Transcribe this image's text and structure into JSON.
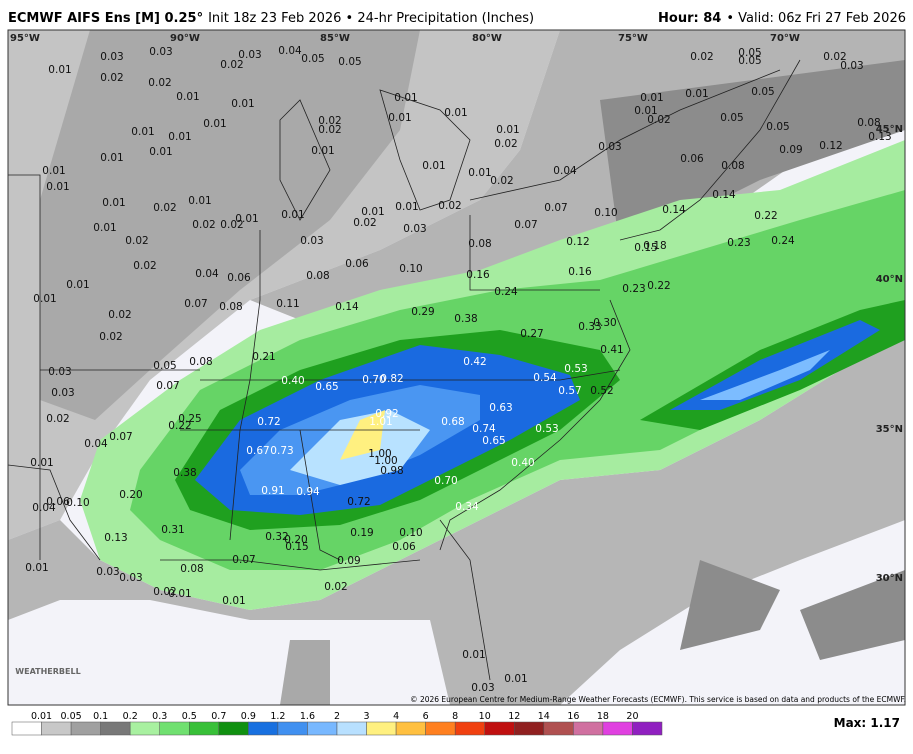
{
  "header": {
    "title_bold": "ECMWF AIFS Ens [M] 0.25°",
    "title_rest": "Init 18z 23 Feb 2026 • 24-hr Precipitation (Inches)",
    "hour": "Hour: 84",
    "valid": "• Valid: 06z Fri 27 Feb 2026"
  },
  "map": {
    "lon_labels": [
      "95°W",
      "90°W",
      "85°W",
      "80°W",
      "75°W",
      "70°W"
    ],
    "lat_labels": [
      "45°N",
      "40°N",
      "35°N",
      "30°N"
    ],
    "labels": [
      "0.03",
      "0.01",
      "0.02",
      "0.03",
      "0.03",
      "0.04",
      "0.05",
      "0.05",
      "0.02",
      "0.02",
      "0.01",
      "0.01",
      "0.01",
      "0.01",
      "0.01",
      "0.01",
      "0.02",
      "0.01",
      "0.01",
      "0.01",
      "0.01",
      "0.01",
      "0.02",
      "0.02",
      "0.01",
      "0.01",
      "0.01",
      "0.02",
      "0.04",
      "0.03",
      "0.01",
      "0.01",
      "0.01",
      "0.02",
      "0.01",
      "0.02",
      "0.02",
      "0.01",
      "0.01",
      "0.01",
      "0.02",
      "0.01",
      "0.02",
      "0.03",
      "0.07",
      "0.07",
      "0.10",
      "0.01",
      "0.02",
      "0.02",
      "0.03",
      "0.06",
      "0.08",
      "0.12",
      "0.10",
      "0.16",
      "0.16",
      "0.04",
      "0.06",
      "0.08",
      "0.01",
      "0.01",
      "0.07",
      "0.08",
      "0.11",
      "0.14",
      "0.24",
      "0.29",
      "0.38",
      "0.27",
      "0.02",
      "0.02",
      "0.05",
      "0.08",
      "0.21",
      "0.42",
      "0.03",
      "0.03",
      "0.02",
      "0.07",
      "0.40",
      "0.65",
      "0.70",
      "0.82",
      "0.54",
      "0.53",
      "0.57",
      "0.52",
      "0.41",
      "0.30",
      "0.33",
      "0.25",
      "0.22",
      "0.72",
      "0.92",
      "1.01",
      "0.63",
      "0.68",
      "0.74",
      "0.65",
      "0.53",
      "0.04",
      "0.07",
      "0.67",
      "0.73",
      "1.00",
      "1.00",
      "0.98",
      "0.01",
      "0.38",
      "0.40",
      "0.70",
      "0.91",
      "0.94",
      "0.72",
      "0.20",
      "0.06",
      "0.10",
      "0.04",
      "0.34",
      "0.31",
      "0.19",
      "0.10",
      "0.32",
      "0.20",
      "0.15",
      "0.13",
      "0.06",
      "0.07",
      "0.09",
      "0.08",
      "0.01",
      "0.03",
      "0.03",
      "0.02",
      "0.01",
      "0.02",
      "0.01",
      "0.01",
      "0.01",
      "0.03",
      "0.02",
      "0.05",
      "0.05",
      "0.02",
      "0.03",
      "0.01",
      "0.01",
      "0.05",
      "0.01",
      "0.02",
      "0.05",
      "0.05",
      "0.08",
      "0.13",
      "0.09",
      "0.12",
      "0.06",
      "0.08",
      "0.14",
      "0.14",
      "0.22",
      "0.18",
      "0.15",
      "0.23",
      "0.24",
      "0.23",
      "0.22"
    ],
    "copyright": "© 2026 European Centre for Medium-Range Weather Forecasts (ECMWF). This service is based on data and products of the ECMWF.",
    "logo": "WEATHERBELL"
  },
  "colorbar": {
    "labels": [
      "0.01",
      "0.05",
      "0.1",
      "0.2",
      "0.3",
      "0.5",
      "0.7",
      "0.9",
      "1.2",
      "1.6",
      "2",
      "3",
      "4",
      "6",
      "8",
      "10",
      "12",
      "14",
      "16",
      "18",
      "20"
    ],
    "colors": [
      "#ffffff",
      "#c8c8c8",
      "#a0a0a0",
      "#787878",
      "#a8f0a0",
      "#70e070",
      "#38c038",
      "#109010",
      "#1870e0",
      "#4090f0",
      "#78b8ff",
      "#b8e0ff",
      "#fff080",
      "#ffc040",
      "#ff8020",
      "#f04010",
      "#c01010",
      "#902020",
      "#b05050",
      "#d070a0",
      "#e040e0",
      "#9020c0"
    ],
    "max": "Max: 1.17"
  }
}
